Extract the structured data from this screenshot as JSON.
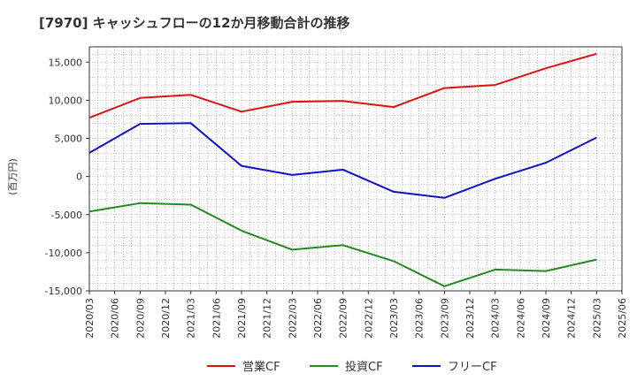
{
  "chart_data": {
    "type": "line",
    "title": "[7970]  キャッシュフローの12か月移動合計の推移",
    "ylabel": "(百万円)",
    "xlabel": "",
    "ylim": [
      -15000,
      17000
    ],
    "yticks": [
      -15000,
      -10000,
      -5000,
      0,
      5000,
      10000,
      15000
    ],
    "ytick_labels": [
      "-15,000",
      "-10,000",
      "-5,000",
      "0",
      "5,000",
      "10,000",
      "15,000"
    ],
    "x_labels": [
      "2020/03",
      "2020/06",
      "2020/09",
      "2020/12",
      "2021/03",
      "2021/06",
      "2021/09",
      "2021/12",
      "2022/03",
      "2022/06",
      "2022/09",
      "2022/12",
      "2023/03",
      "2023/06",
      "2023/09",
      "2023/12",
      "2024/03",
      "2024/06",
      "2024/09",
      "2024/12",
      "2025/03",
      "2025/06"
    ],
    "grid": true,
    "legend_position": "bottom",
    "series": [
      {
        "name": "営業CF",
        "color": "#dd1111",
        "points": [
          {
            "x": "2020/03",
            "y": 7700
          },
          {
            "x": "2020/09",
            "y": 10300
          },
          {
            "x": "2021/03",
            "y": 10700
          },
          {
            "x": "2021/09",
            "y": 8500
          },
          {
            "x": "2022/03",
            "y": 9800
          },
          {
            "x": "2022/09",
            "y": 9900
          },
          {
            "x": "2023/03",
            "y": 9100
          },
          {
            "x": "2023/09",
            "y": 11600
          },
          {
            "x": "2024/03",
            "y": 12000
          },
          {
            "x": "2024/09",
            "y": 14200
          },
          {
            "x": "2025/03",
            "y": 16100
          }
        ]
      },
      {
        "name": "投資CF",
        "color": "#228822",
        "points": [
          {
            "x": "2020/03",
            "y": -4600
          },
          {
            "x": "2020/09",
            "y": -3500
          },
          {
            "x": "2021/03",
            "y": -3700
          },
          {
            "x": "2021/09",
            "y": -7100
          },
          {
            "x": "2022/03",
            "y": -9600
          },
          {
            "x": "2022/09",
            "y": -9000
          },
          {
            "x": "2023/03",
            "y": -11100
          },
          {
            "x": "2023/09",
            "y": -14400
          },
          {
            "x": "2024/03",
            "y": -12200
          },
          {
            "x": "2024/09",
            "y": -12400
          },
          {
            "x": "2025/03",
            "y": -10900
          }
        ]
      },
      {
        "name": "フリーCF",
        "color": "#1111cc",
        "points": [
          {
            "x": "2020/03",
            "y": 3100
          },
          {
            "x": "2020/09",
            "y": 6900
          },
          {
            "x": "2021/03",
            "y": 7000
          },
          {
            "x": "2021/09",
            "y": 1400
          },
          {
            "x": "2022/03",
            "y": 200
          },
          {
            "x": "2022/09",
            "y": 900
          },
          {
            "x": "2023/03",
            "y": -2000
          },
          {
            "x": "2023/09",
            "y": -2800
          },
          {
            "x": "2024/03",
            "y": -300
          },
          {
            "x": "2024/09",
            "y": 1800
          },
          {
            "x": "2025/03",
            "y": 5100
          }
        ]
      }
    ]
  }
}
